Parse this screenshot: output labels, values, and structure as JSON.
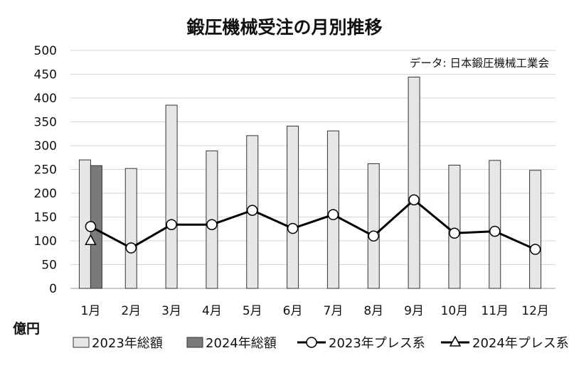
{
  "chart_data": {
    "type": "bar",
    "title": "鍛圧機械受注の月別推移",
    "annotation": "データ: 日本鍛圧機械工業会",
    "ylabel": "億円",
    "xlabel": "",
    "ylim": [
      0,
      500
    ],
    "yticks": [
      "0",
      "50",
      "100",
      "150",
      "200",
      "250",
      "300",
      "350",
      "400",
      "450",
      "500"
    ],
    "categories": [
      "1月",
      "2月",
      "3月",
      "4月",
      "5月",
      "6月",
      "7月",
      "8月",
      "9月",
      "10月",
      "11月",
      "12月"
    ],
    "grid": true,
    "legend_position": "bottom",
    "series": [
      {
        "name": "2023年総額",
        "kind": "bar",
        "color": "#e6e6e6",
        "values": [
          270,
          252,
          385,
          289,
          321,
          341,
          331,
          262,
          444,
          259,
          269,
          248
        ]
      },
      {
        "name": "2024年総額",
        "kind": "bar",
        "color": "#7a7a7a",
        "values": [
          258,
          null,
          null,
          null,
          null,
          null,
          null,
          null,
          null,
          null,
          null,
          null
        ]
      },
      {
        "name": "2023年プレス系",
        "kind": "line",
        "marker": "circle",
        "color": "#000000",
        "values": [
          130,
          85,
          134,
          134,
          164,
          126,
          155,
          110,
          186,
          116,
          120,
          82
        ]
      },
      {
        "name": "2024年プレス系",
        "kind": "line",
        "marker": "triangle",
        "color": "#000000",
        "values": [
          100,
          null,
          null,
          null,
          null,
          null,
          null,
          null,
          null,
          null,
          null,
          null
        ]
      }
    ]
  }
}
